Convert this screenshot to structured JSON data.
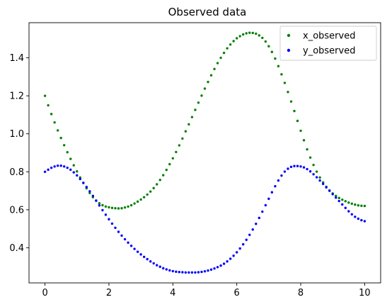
{
  "chart_data": {
    "type": "scatter",
    "title": "Observed data",
    "xlabel": "",
    "ylabel": "",
    "xlim": [
      -0.5,
      10.5
    ],
    "ylim": [
      0.215,
      1.585
    ],
    "xticks": [
      0,
      2,
      4,
      6,
      8,
      10
    ],
    "yticks": [
      0.4,
      0.6,
      0.8,
      1.0,
      1.2,
      1.4
    ],
    "xtick_labels": [
      "0",
      "2",
      "4",
      "6",
      "8",
      "10"
    ],
    "ytick_labels": [
      "0.4",
      "0.6",
      "0.8",
      "1.0",
      "1.2",
      "1.4"
    ],
    "grid": false,
    "legend_position": "top-right",
    "series": [
      {
        "name": "x_observed",
        "color": "#008000",
        "x": [
          0,
          0.1,
          0.2,
          0.3,
          0.4,
          0.5,
          0.6,
          0.7,
          0.8,
          0.9,
          1.0,
          1.1,
          1.2,
          1.3,
          1.4,
          1.5,
          1.6,
          1.7,
          1.8,
          1.9,
          2.0,
          2.1,
          2.2,
          2.3,
          2.4,
          2.5,
          2.6,
          2.7,
          2.8,
          2.9,
          3.0,
          3.1,
          3.2,
          3.3,
          3.4,
          3.5,
          3.6,
          3.7,
          3.8,
          3.9,
          4.0,
          4.1,
          4.2,
          4.3,
          4.4,
          4.5,
          4.6,
          4.7,
          4.8,
          4.9,
          5.0,
          5.1,
          5.2,
          5.3,
          5.4,
          5.5,
          5.6,
          5.7,
          5.8,
          5.9,
          6.0,
          6.1,
          6.2,
          6.3,
          6.4,
          6.5,
          6.6,
          6.7,
          6.8,
          6.9,
          7.0,
          7.1,
          7.2,
          7.3,
          7.4,
          7.5,
          7.6,
          7.7,
          7.8,
          7.9,
          8.0,
          8.1,
          8.2,
          8.3,
          8.4,
          8.5,
          8.6,
          8.7,
          8.8,
          8.9,
          9.0,
          9.1,
          9.2,
          9.3,
          9.4,
          9.5,
          9.6,
          9.7,
          9.8,
          9.9,
          10.0
        ],
        "y": [
          1.2,
          1.15,
          1.104,
          1.06,
          1.018,
          0.978,
          0.94,
          0.903,
          0.868,
          0.834,
          0.802,
          0.77,
          0.741,
          0.713,
          0.688,
          0.666,
          0.648,
          0.634,
          0.624,
          0.617,
          0.613,
          0.61,
          0.608,
          0.607,
          0.608,
          0.612,
          0.617,
          0.624,
          0.633,
          0.643,
          0.654,
          0.666,
          0.68,
          0.696,
          0.714,
          0.734,
          0.757,
          0.782,
          0.81,
          0.84,
          0.871,
          0.904,
          0.939,
          0.975,
          1.013,
          1.05,
          1.088,
          1.126,
          1.164,
          1.201,
          1.238,
          1.273,
          1.308,
          1.341,
          1.372,
          1.4,
          1.426,
          1.45,
          1.47,
          1.488,
          1.503,
          1.514,
          1.523,
          1.529,
          1.532,
          1.531,
          1.527,
          1.518,
          1.505,
          1.486,
          1.461,
          1.431,
          1.396,
          1.356,
          1.313,
          1.268,
          1.22,
          1.17,
          1.12,
          1.068,
          1.016,
          0.966,
          0.918,
          0.875,
          0.836,
          0.801,
          0.77,
          0.744,
          0.721,
          0.702,
          0.686,
          0.673,
          0.662,
          0.653,
          0.645,
          0.638,
          0.632,
          0.627,
          0.623,
          0.621,
          0.62
        ]
      },
      {
        "name": "y_observed",
        "color": "#0000ff",
        "x": [
          0,
          0.1,
          0.2,
          0.3,
          0.4,
          0.5,
          0.6,
          0.7,
          0.8,
          0.9,
          1.0,
          1.1,
          1.2,
          1.3,
          1.4,
          1.5,
          1.6,
          1.7,
          1.8,
          1.9,
          2.0,
          2.1,
          2.2,
          2.3,
          2.4,
          2.5,
          2.6,
          2.7,
          2.8,
          2.9,
          3.0,
          3.1,
          3.2,
          3.3,
          3.4,
          3.5,
          3.6,
          3.7,
          3.8,
          3.9,
          4.0,
          4.1,
          4.2,
          4.3,
          4.4,
          4.5,
          4.6,
          4.7,
          4.8,
          4.9,
          5.0,
          5.1,
          5.2,
          5.3,
          5.4,
          5.5,
          5.6,
          5.7,
          5.8,
          5.9,
          6.0,
          6.1,
          6.2,
          6.3,
          6.4,
          6.5,
          6.6,
          6.7,
          6.8,
          6.9,
          7.0,
          7.1,
          7.2,
          7.3,
          7.4,
          7.5,
          7.6,
          7.7,
          7.8,
          7.9,
          8.0,
          8.1,
          8.2,
          8.3,
          8.4,
          8.5,
          8.6,
          8.7,
          8.8,
          8.9,
          9.0,
          9.1,
          9.2,
          9.3,
          9.4,
          9.5,
          9.6,
          9.7,
          9.8,
          9.9,
          10.0
        ],
        "y": [
          0.8,
          0.811,
          0.821,
          0.828,
          0.832,
          0.832,
          0.828,
          0.821,
          0.811,
          0.797,
          0.781,
          0.762,
          0.742,
          0.72,
          0.697,
          0.673,
          0.648,
          0.623,
          0.598,
          0.574,
          0.55,
          0.527,
          0.505,
          0.484,
          0.464,
          0.445,
          0.427,
          0.41,
          0.394,
          0.379,
          0.365,
          0.352,
          0.34,
          0.328,
          0.318,
          0.308,
          0.3,
          0.292,
          0.286,
          0.281,
          0.277,
          0.274,
          0.272,
          0.271,
          0.27,
          0.27,
          0.27,
          0.27,
          0.271,
          0.273,
          0.276,
          0.28,
          0.285,
          0.291,
          0.298,
          0.306,
          0.316,
          0.328,
          0.342,
          0.358,
          0.376,
          0.396,
          0.418,
          0.442,
          0.468,
          0.496,
          0.526,
          0.557,
          0.59,
          0.624,
          0.658,
          0.692,
          0.724,
          0.754,
          0.78,
          0.801,
          0.816,
          0.826,
          0.83,
          0.83,
          0.828,
          0.823,
          0.814,
          0.802,
          0.787,
          0.771,
          0.754,
          0.736,
          0.718,
          0.7,
          0.682,
          0.664,
          0.646,
          0.628,
          0.61,
          0.592,
          0.576,
          0.563,
          0.553,
          0.545,
          0.54
        ]
      }
    ]
  }
}
